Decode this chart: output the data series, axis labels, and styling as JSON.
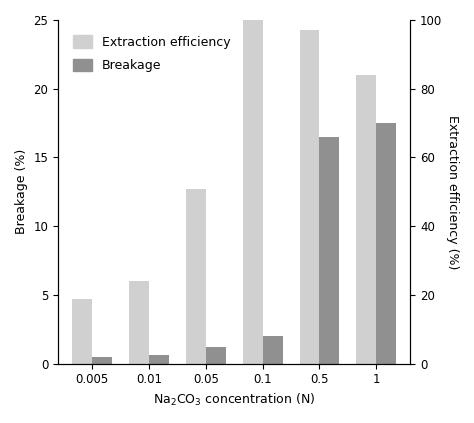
{
  "categories": [
    "0.005",
    "0.01",
    "0.05",
    "0.1",
    "0.5",
    "1"
  ],
  "ylabel_left": "Breakage (%)",
  "ylabel_right": "Extraction efficiency (%)",
  "ylim_left": [
    0,
    25
  ],
  "ylim_right": [
    0,
    100
  ],
  "yticks_left": [
    0,
    5,
    10,
    15,
    20,
    25
  ],
  "yticks_right": [
    0,
    20,
    40,
    60,
    80,
    100
  ],
  "extraction_efficiency_left": [
    4.7,
    6.0,
    12.7,
    25.0,
    24.3,
    21.0
  ],
  "breakage": [
    0.5,
    0.65,
    1.2,
    2.0,
    16.5,
    17.5
  ],
  "color_extraction": "#d0d0d0",
  "color_breakage": "#909090",
  "bar_width": 0.35,
  "legend_labels": [
    "Extraction efficiency",
    "Breakage"
  ],
  "legend_fontsize": 9,
  "axis_fontsize": 9,
  "tick_fontsize": 8.5,
  "background_color": "#ffffff"
}
